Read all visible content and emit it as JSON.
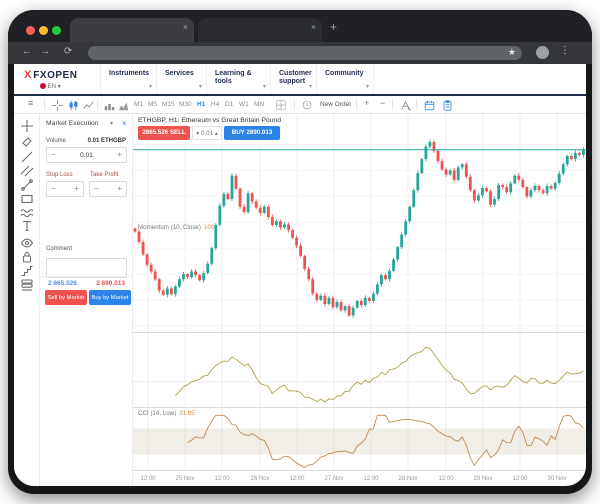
{
  "icons": {
    "back": "←",
    "forward": "→",
    "refresh": "⟳",
    "star": "★",
    "menu_dots": "⋮",
    "new_tab": "+",
    "tab_close": "×",
    "hamburger": "≡",
    "chevron_down": "▾",
    "chevron_up": "▴",
    "plus": "+",
    "minus": "−",
    "panel_close": "×",
    "letter_a": "A"
  },
  "nav": {
    "logo_mark": "X",
    "logo_word": "FXOPEN",
    "language": "EN",
    "items": [
      "Instruments",
      "Services",
      "Learning & tools",
      "Customer support",
      "Community"
    ]
  },
  "toolbar": {
    "timeframes": [
      "M1",
      "M5",
      "M15",
      "M30",
      "H1",
      "H4",
      "D1",
      "W1",
      "MN"
    ],
    "active_timeframe": "H1",
    "new_order_label": "New Order"
  },
  "order_panel": {
    "title": "Market Execution",
    "volume_label": "Volume",
    "volume_unit": "0.01 ETHGBP",
    "volume_value": "0.01",
    "stop_loss_label": "Stop Loss",
    "take_profit_label": "Take Profit",
    "comment_label": "Comment",
    "sell_price": "2 865.526",
    "buy_price": "2 890.013",
    "sell_button": "Sell by Market",
    "buy_button": "Buy by Market"
  },
  "chart_header": {
    "title": "ETHGBP, H1: Ethereum vs Great Britain Pound",
    "sell_price": "2865.526",
    "sell_label": "SELL",
    "volume": "0.01",
    "buy_label": "BUY",
    "buy_price": "2890.013"
  },
  "indicators": {
    "momentum_label": "Momentum (10, Close)",
    "momentum_value": "100",
    "cci_label": "CCI (14, Low)",
    "cci_value": "31.95"
  },
  "chart_data": {
    "type": "candlestick",
    "symbol": "ETHGBP",
    "timeframe": "H1",
    "title": "ETHGBP, H1: Ethereum vs Great Britain Pound",
    "x_labels": [
      "12:00",
      "25 Nov",
      "12:00",
      "26 Nov",
      "12:00",
      "27 Nov",
      "12:00",
      "28 Nov",
      "12:00",
      "29 Nov",
      "12:00",
      "30 Nov"
    ],
    "price_range": [
      2540,
      2905
    ],
    "current_price": 2890,
    "grid_step": 50,
    "closes": [
      2732,
      2712,
      2688,
      2668,
      2655,
      2640,
      2618,
      2610,
      2622,
      2611,
      2626,
      2640,
      2650,
      2644,
      2655,
      2648,
      2638,
      2652,
      2670,
      2700,
      2745,
      2782,
      2805,
      2795,
      2840,
      2815,
      2780,
      2770,
      2806,
      2790,
      2778,
      2768,
      2780,
      2760,
      2745,
      2752,
      2740,
      2746,
      2735,
      2720,
      2705,
      2685,
      2660,
      2640,
      2612,
      2600,
      2608,
      2592,
      2604,
      2586,
      2596,
      2580,
      2588,
      2570,
      2585,
      2598,
      2590,
      2604,
      2598,
      2612,
      2630,
      2648,
      2640,
      2656,
      2678,
      2702,
      2726,
      2752,
      2780,
      2812,
      2845,
      2872,
      2896,
      2905,
      2888,
      2868,
      2852,
      2842,
      2850,
      2832,
      2856,
      2862,
      2838,
      2812,
      2792,
      2802,
      2816,
      2810,
      2784,
      2795,
      2822,
      2818,
      2808,
      2825,
      2840,
      2832,
      2818,
      2800,
      2812,
      2820,
      2812,
      2806,
      2820,
      2815,
      2826,
      2844,
      2862,
      2878,
      2872,
      2884,
      2880,
      2890
    ],
    "momentum": {
      "period": 10,
      "applied": "Close",
      "level": 100
    },
    "cci": {
      "period": 14,
      "applied": "Low",
      "levels": [
        -100,
        100
      ]
    },
    "colors": {
      "up": "#26a69a",
      "down": "#ef5350",
      "price_line": "#26a69a",
      "momentum_line": "#b0a14a",
      "cci_line": "#c08a52",
      "cci_band": "rgba(205,195,170,0.28)",
      "grid": "#efefef",
      "separator": "#dddddd"
    }
  }
}
